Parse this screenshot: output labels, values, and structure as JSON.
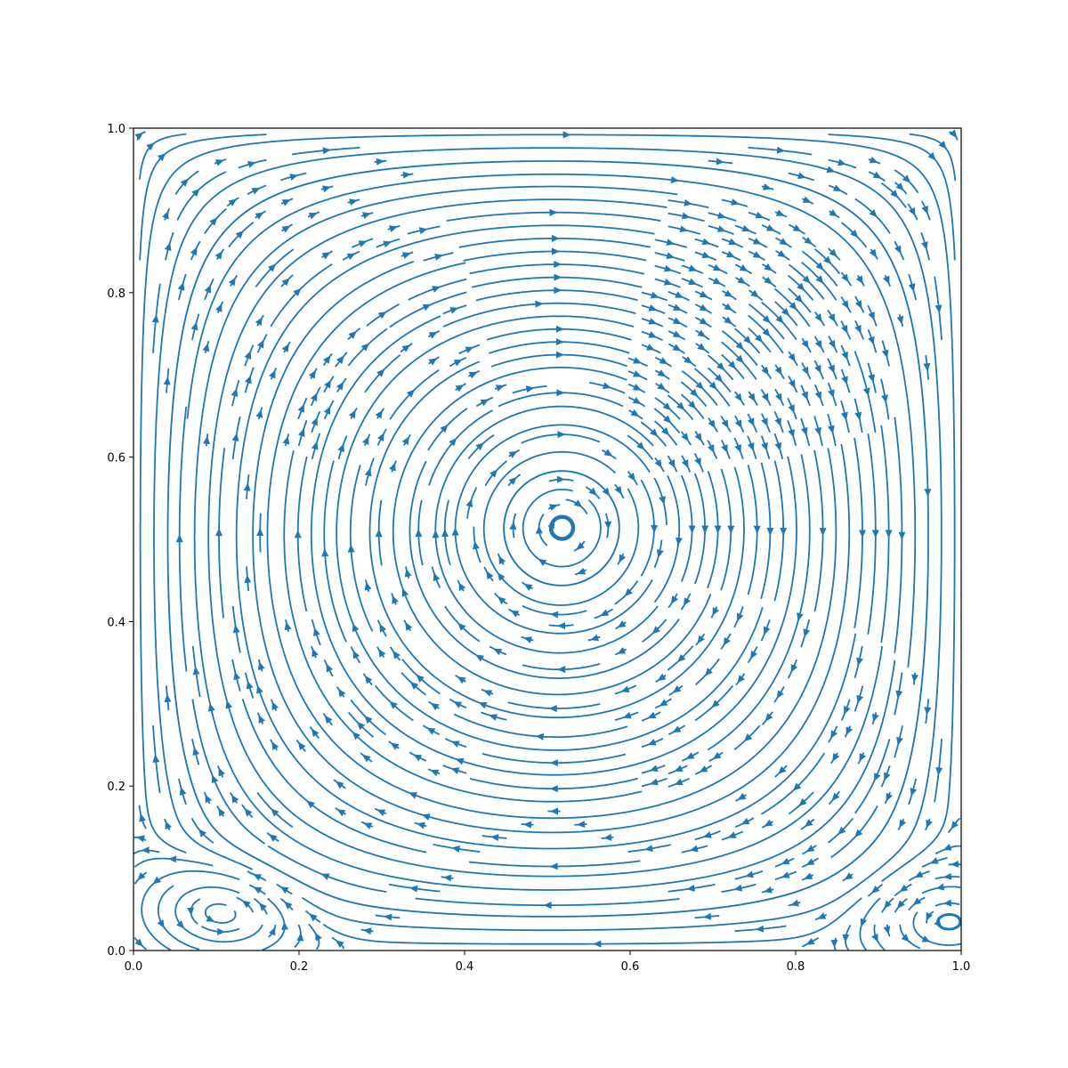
{
  "chart_data": {
    "type": "streamplot",
    "title": "",
    "xlabel": "",
    "ylabel": "",
    "xlim": [
      0,
      1
    ],
    "ylim": [
      0,
      1
    ],
    "xticks": [
      "0.0",
      "0.2",
      "0.4",
      "0.6",
      "0.8",
      "1.0"
    ],
    "yticks": [
      "0.0",
      "0.2",
      "0.4",
      "0.6",
      "0.8",
      "1.0"
    ],
    "grid": false,
    "line_color": "#1f77b4",
    "flow": "clockwise",
    "vortices": [
      {
        "role": "primary",
        "x": 0.57,
        "y": 0.555,
        "rotation": "clockwise"
      },
      {
        "role": "secondary",
        "x": 0.11,
        "y": 0.05,
        "rotation": "counterclockwise"
      },
      {
        "role": "secondary",
        "x": 0.985,
        "y": 0.035,
        "rotation": "counterclockwise"
      }
    ],
    "boundary_conditions": {
      "top_wall": "moving right",
      "other_walls": "no-slip"
    }
  }
}
